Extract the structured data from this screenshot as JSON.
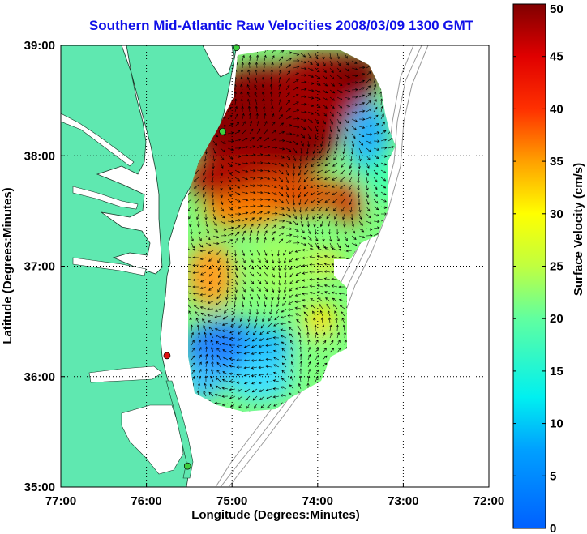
{
  "title": "Southern Mid-Atlantic Raw Velocities 2008/03/09 1300 GMT",
  "x_axis": {
    "label": "Longitude (Degrees:Minutes)",
    "ticks": [
      "77:00",
      "76:00",
      "75:00",
      "74:00",
      "73:00",
      "72:00"
    ],
    "values": [
      -77,
      -76,
      -75,
      -74,
      -73,
      -72
    ]
  },
  "y_axis": {
    "label": "Latitude (Degrees:Minutes)",
    "ticks": [
      "39:00",
      "38:00",
      "37:00",
      "36:00",
      "35:00"
    ],
    "values": [
      39,
      38,
      37,
      36,
      35
    ]
  },
  "colorbar": {
    "label": "Surface Velocity (cm/s)",
    "ticks": [
      "50",
      "45",
      "40",
      "35",
      "30",
      "25",
      "20",
      "15",
      "10",
      "5",
      "0"
    ],
    "min": 0,
    "max": 50,
    "colormap": "jet"
  },
  "colors": {
    "land": "#5fe8b0",
    "ocean": "#ffffff",
    "title": "#1010e8",
    "bathymetry": "#9a9a9a",
    "station_green": "#3fd040",
    "station_red": "#e01010"
  },
  "grid": true,
  "stations": [
    {
      "lon": -74.95,
      "lat": 38.98,
      "status": "green"
    },
    {
      "lon": -75.11,
      "lat": 38.22,
      "status": "green"
    },
    {
      "lon": -75.76,
      "lat": 36.19,
      "status": "red"
    },
    {
      "lon": -75.52,
      "lat": 35.19,
      "status": "green"
    }
  ]
}
